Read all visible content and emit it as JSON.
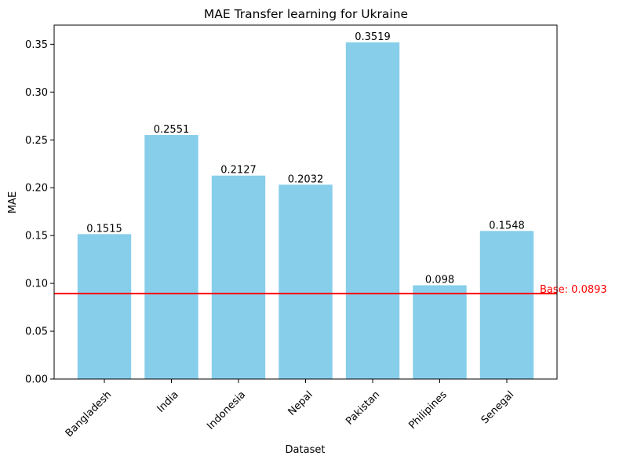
{
  "chart_data": {
    "type": "bar",
    "title": "MAE Transfer learning for Ukraine",
    "xlabel": "Dataset",
    "ylabel": "MAE",
    "categories": [
      "Bangladesh",
      "India",
      "Indonesia",
      "Nepal",
      "Pakistan",
      "Philipines",
      "Senegal"
    ],
    "values": [
      0.1515,
      0.2551,
      0.2127,
      0.2032,
      0.3519,
      0.098,
      0.1548
    ],
    "value_labels": [
      "0.1515",
      "0.2551",
      "0.2127",
      "0.2032",
      "0.3519",
      "0.098",
      "0.1548"
    ],
    "ylim": [
      0,
      0.37
    ],
    "yticks": [
      0,
      0.05,
      0.1,
      0.15,
      0.2,
      0.25,
      0.3,
      0.35
    ],
    "ytick_labels": [
      "0.00",
      "0.05",
      "0.10",
      "0.15",
      "0.20",
      "0.25",
      "0.30",
      "0.35"
    ],
    "bar_color": "#87ceeb",
    "baseline": {
      "value": 0.0893,
      "label": "Base: 0.0893",
      "color": "#ff0000"
    },
    "grid": false,
    "legend": "none"
  }
}
